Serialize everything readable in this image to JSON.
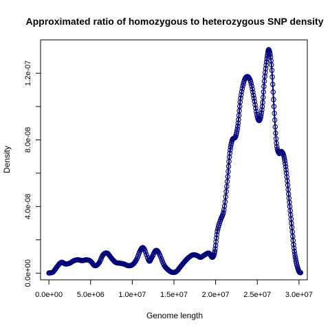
{
  "chart_data": {
    "type": "line",
    "title": "Approximated ratio of homozygous to heterozygous SNP density",
    "xlabel": "Genome length",
    "ylabel": "Density",
    "xlim": [
      -1000000,
      31000000
    ],
    "ylim": [
      -4e-09,
      1.4e-07
    ],
    "x_ticks": [
      0,
      5000000,
      10000000,
      15000000,
      20000000,
      25000000,
      30000000
    ],
    "x_tick_labels": [
      "0.0e+00",
      "5.0e+06",
      "1.0e+07",
      "1.5e+07",
      "2.0e+07",
      "2.5e+07",
      "3.0e+07"
    ],
    "y_ticks": [
      0,
      4e-08,
      8e-08,
      1.2e-07
    ],
    "y_tick_labels": [
      "0.0e+00",
      "4.0e-08",
      "8.0e-08",
      "1.2e-07"
    ],
    "grid": false,
    "colors": {
      "line": "#00007a",
      "marker": "#00007a",
      "axis": "#000000"
    },
    "series": [
      {
        "points": [
          [
            0,
            1e-10
          ],
          [
            500000,
            7e-10
          ],
          [
            1000000,
            4e-09
          ],
          [
            1500000,
            6.5e-09
          ],
          [
            2000000,
            5.5e-09
          ],
          [
            2500000,
            6e-09
          ],
          [
            3000000,
            7.5e-09
          ],
          [
            3500000,
            8e-09
          ],
          [
            4000000,
            7.5e-09
          ],
          [
            4500000,
            8e-09
          ],
          [
            5000000,
            7.2e-09
          ],
          [
            5500000,
            4.5e-09
          ],
          [
            6000000,
            6e-09
          ],
          [
            6500000,
            1.1e-08
          ],
          [
            7000000,
            1.2e-08
          ],
          [
            7500000,
            9e-09
          ],
          [
            8000000,
            6.5e-09
          ],
          [
            8500000,
            6e-09
          ],
          [
            9000000,
            5.5e-09
          ],
          [
            9500000,
            4.5e-09
          ],
          [
            10000000,
            5e-09
          ],
          [
            10500000,
            8e-09
          ],
          [
            11000000,
            1.4e-08
          ],
          [
            11400000,
            1.48e-08
          ],
          [
            12000000,
            7.5e-09
          ],
          [
            12300000,
            9e-09
          ],
          [
            12800000,
            1.35e-08
          ],
          [
            13200000,
            1.2e-08
          ],
          [
            13800000,
            5e-09
          ],
          [
            14300000,
            2e-09
          ],
          [
            14800000,
            5e-10
          ],
          [
            15300000,
            1e-09
          ],
          [
            15800000,
            4e-09
          ],
          [
            16300000,
            7e-09
          ],
          [
            16800000,
            9.5e-09
          ],
          [
            17300000,
            1.1e-08
          ],
          [
            17800000,
            1.05e-08
          ],
          [
            18200000,
            9.5e-09
          ],
          [
            18700000,
            1.1e-08
          ],
          [
            19200000,
            1.2e-08
          ],
          [
            19600000,
            9.5e-09
          ],
          [
            19900000,
            1.3e-08
          ],
          [
            20200000,
            2.5e-08
          ],
          [
            20600000,
            3.2e-08
          ],
          [
            21000000,
            3.8e-08
          ],
          [
            21400000,
            5.5e-08
          ],
          [
            21700000,
            7.2e-08
          ],
          [
            22000000,
            8e-08
          ],
          [
            22400000,
            8.2e-08
          ],
          [
            22700000,
            9e-08
          ],
          [
            23000000,
            1.05e-07
          ],
          [
            23400000,
            1.15e-07
          ],
          [
            23800000,
            1.18e-07
          ],
          [
            24200000,
            1.15e-07
          ],
          [
            24600000,
            1.05e-07
          ],
          [
            25000000,
            9.4e-08
          ],
          [
            25300000,
            9.2e-08
          ],
          [
            25600000,
            1e-07
          ],
          [
            25900000,
            1.18e-07
          ],
          [
            26200000,
            1.3e-07
          ],
          [
            26400000,
            1.34e-07
          ],
          [
            26700000,
            1.25e-07
          ],
          [
            27000000,
            1e-07
          ],
          [
            27300000,
            7.8e-08
          ],
          [
            27600000,
            7.2e-08
          ],
          [
            27900000,
            7.3e-08
          ],
          [
            28200000,
            7e-08
          ],
          [
            28500000,
            6e-08
          ],
          [
            28800000,
            4.5e-08
          ],
          [
            29100000,
            3e-08
          ],
          [
            29400000,
            1.5e-08
          ],
          [
            29700000,
            6e-09
          ],
          [
            30000000,
            1e-09
          ],
          [
            30200000,
            3e-10
          ]
        ]
      }
    ]
  }
}
